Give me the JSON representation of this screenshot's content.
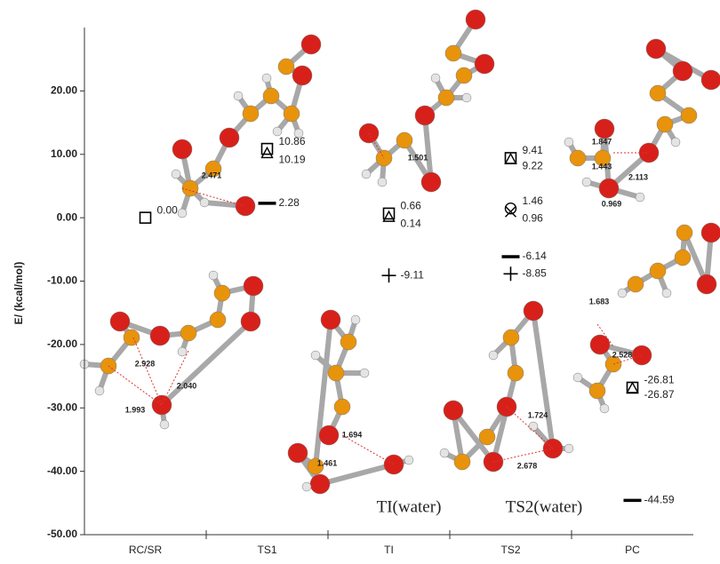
{
  "chart_data": {
    "type": "scatter",
    "ylabel": "E/ (kcal/mol)",
    "categories": [
      "RC/SR",
      "TS1",
      "TI",
      "TS2",
      "PC"
    ],
    "ylim": [
      -50,
      30
    ],
    "yticks": [
      {
        "value": -50,
        "label": "-50.00"
      },
      {
        "value": -40,
        "label": "-40.00"
      },
      {
        "value": -30,
        "label": "-30.00"
      },
      {
        "value": -20,
        "label": "-20.00"
      },
      {
        "value": -10,
        "label": "-10.00"
      },
      {
        "value": 0,
        "label": "0.00"
      },
      {
        "value": 10,
        "label": "10.00"
      },
      {
        "value": 20,
        "label": "20.00"
      }
    ],
    "series": [
      {
        "marker": "square",
        "color": "#000000",
        "values": [
          0,
          10.86,
          0.66,
          9.41,
          -26.81
        ],
        "value_labels": [
          "0.00",
          "10.86",
          "0.66",
          "9.41",
          "-26.81"
        ]
      },
      {
        "marker": "triangle",
        "color": "#000000",
        "values": [
          null,
          10.19,
          0.14,
          9.22,
          -26.87
        ],
        "value_labels": [
          null,
          "10.19",
          "0.14",
          "9.22",
          "-26.87"
        ]
      },
      {
        "marker": "dash",
        "color": "#000000",
        "values": [
          null,
          2.28,
          null,
          -6.14,
          -44.59
        ],
        "value_labels": [
          null,
          "2.28",
          null,
          "-6.14",
          "-44.59"
        ]
      },
      {
        "marker": "circle",
        "color": "#000000",
        "values": [
          null,
          null,
          null,
          1.46,
          null
        ],
        "value_labels": [
          null,
          null,
          null,
          "1.46",
          null
        ]
      },
      {
        "marker": "x",
        "color": "#000000",
        "values": [
          null,
          null,
          null,
          0.96,
          null
        ],
        "value_labels": [
          null,
          null,
          null,
          "0.96",
          null
        ]
      },
      {
        "marker": "plus",
        "color": "#000000",
        "values": [
          null,
          null,
          -9.11,
          -8.85,
          null
        ],
        "value_labels": [
          null,
          null,
          "-9.11",
          "-8.85",
          null
        ]
      }
    ],
    "annotations": [
      "2.471",
      "1.501",
      "1.847",
      "1.443",
      "2.113",
      "0.969",
      "2.928",
      "2.040",
      "1.993",
      "1.694",
      "1.461",
      "1.724",
      "2.678",
      "1.683",
      "2.528",
      "TI(water)",
      "TS2(water)"
    ]
  }
}
